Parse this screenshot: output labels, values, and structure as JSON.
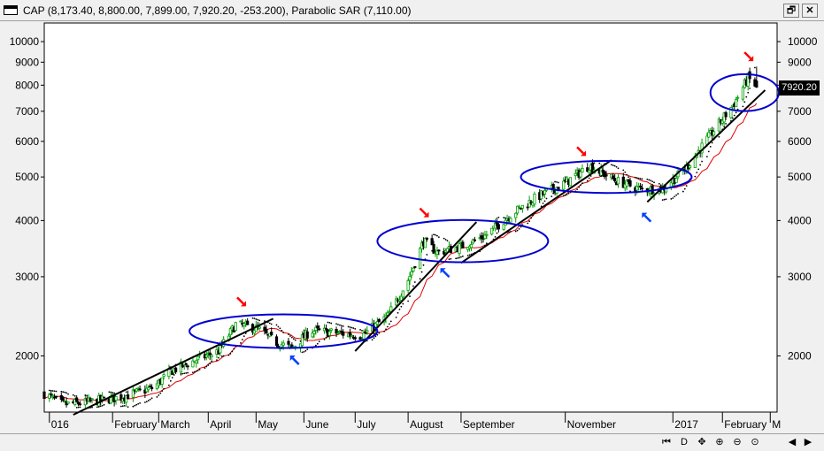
{
  "window": {
    "title": "CAP (8,173.40, 8,800.00, 7,899.00, 7,920.20, -253.200), Parabolic SAR (7,110.00)",
    "restore_label": "🗗",
    "close_label": "✕"
  },
  "last_price_label": "7920.20",
  "colors": {
    "up_candle": "#00a000",
    "down_candle": "#000000",
    "moving_average": "#e00000",
    "sar_dots": "#000000",
    "trendline": "#000000",
    "ellipse": "#0000d0",
    "arrow_down_red": "#ff0000",
    "arrow_up_blue": "#0040ff"
  },
  "bottom_nav": [
    "⏮",
    "D",
    "✥",
    "⊕",
    "⊖",
    "⊙",
    "◀",
    "▶"
  ],
  "chart_data": {
    "type": "candlestick",
    "y_scale": "log",
    "ylim": [
      1500,
      11000
    ],
    "y_ticks": [
      2000,
      3000,
      4000,
      5000,
      6000,
      7000,
      8000,
      9000,
      10000
    ],
    "x_labels": [
      "016",
      "February",
      "March",
      "April",
      "May",
      "June",
      "July",
      "August",
      "September",
      "November",
      "2017",
      "February",
      "M"
    ],
    "x_label_dates": [
      "2016-01-04",
      "2016-02-10",
      "2016-03-08",
      "2016-04-06",
      "2016-05-04",
      "2016-06-01",
      "2016-07-01",
      "2016-08-01",
      "2016-09-01",
      "2016-11-01",
      "2017-01-03",
      "2017-02-01",
      "2017-03-01"
    ],
    "xlim": [
      "2016-01-01",
      "2017-03-05"
    ],
    "last": {
      "open": 8173.4,
      "high": 8800.0,
      "low": 7899.0,
      "close": 7920.2,
      "change": -253.2
    },
    "parabolic_sar": 7110.0,
    "anchor_closes": [
      [
        "2016-01-01",
        1650
      ],
      [
        "2016-01-12",
        1560
      ],
      [
        "2016-01-25",
        1575
      ],
      [
        "2016-02-15",
        1620
      ],
      [
        "2016-03-05",
        1700
      ],
      [
        "2016-03-15",
        1850
      ],
      [
        "2016-03-30",
        1960
      ],
      [
        "2016-04-12",
        2050
      ],
      [
        "2016-04-22",
        2350
      ],
      [
        "2016-05-05",
        2300
      ],
      [
        "2016-05-15",
        2150
      ],
      [
        "2016-05-25",
        2080
      ],
      [
        "2016-06-05",
        2280
      ],
      [
        "2016-06-20",
        2250
      ],
      [
        "2016-07-05",
        2220
      ],
      [
        "2016-07-20",
        2450
      ],
      [
        "2016-08-01",
        2950
      ],
      [
        "2016-08-10",
        3600
      ],
      [
        "2016-08-18",
        3400
      ],
      [
        "2016-09-01",
        3500
      ],
      [
        "2016-09-15",
        3700
      ],
      [
        "2016-10-01",
        4150
      ],
      [
        "2016-10-15",
        4500
      ],
      [
        "2016-11-01",
        4850
      ],
      [
        "2016-11-15",
        5300
      ],
      [
        "2016-12-01",
        4900
      ],
      [
        "2016-12-15",
        4700
      ],
      [
        "2016-12-28",
        4700
      ],
      [
        "2017-01-10",
        5200
      ],
      [
        "2017-01-25",
        6200
      ],
      [
        "2017-02-08",
        7300
      ],
      [
        "2017-02-16",
        8300
      ],
      [
        "2017-02-21",
        7920
      ]
    ],
    "trendlines": [
      {
        "from": [
          "2016-01-18",
          1480
        ],
        "to": [
          "2016-05-14",
          2420
        ]
      },
      {
        "from": [
          "2016-07-01",
          2050
        ],
        "to": [
          "2016-09-10",
          3970
        ]
      },
      {
        "from": [
          "2016-09-01",
          3220
        ],
        "to": [
          "2016-11-28",
          5450
        ]
      },
      {
        "from": [
          "2016-12-19",
          4400
        ],
        "to": [
          "2017-02-26",
          7800
        ]
      }
    ],
    "ellipses": [
      {
        "center": [
          "2016-05-20",
          2270
        ],
        "rx_days": 55,
        "y_range": [
          2080,
          2470
        ]
      },
      {
        "center": [
          "2016-09-02",
          3600
        ],
        "rx_days": 50,
        "y_range": [
          3230,
          4010
        ]
      },
      {
        "center": [
          "2016-11-25",
          5000
        ],
        "rx_days": 50,
        "y_range": [
          4600,
          5420
        ]
      },
      {
        "center": [
          "2017-02-14",
          7700
        ],
        "rx_days": 20,
        "y_range": [
          7080,
          8550
        ]
      }
    ],
    "arrows": [
      {
        "kind": "down-red",
        "at": [
          "2016-04-25",
          2650
        ]
      },
      {
        "kind": "up-blue",
        "at": [
          "2016-05-27",
          1950
        ]
      },
      {
        "kind": "down-red",
        "at": [
          "2016-08-10",
          4180
        ]
      },
      {
        "kind": "up-blue",
        "at": [
          "2016-08-23",
          3050
        ]
      },
      {
        "kind": "down-red",
        "at": [
          "2016-11-10",
          5720
        ]
      },
      {
        "kind": "up-blue",
        "at": [
          "2016-12-19",
          4050
        ]
      },
      {
        "kind": "down-red",
        "at": [
          "2017-02-16",
          9300
        ]
      }
    ]
  }
}
